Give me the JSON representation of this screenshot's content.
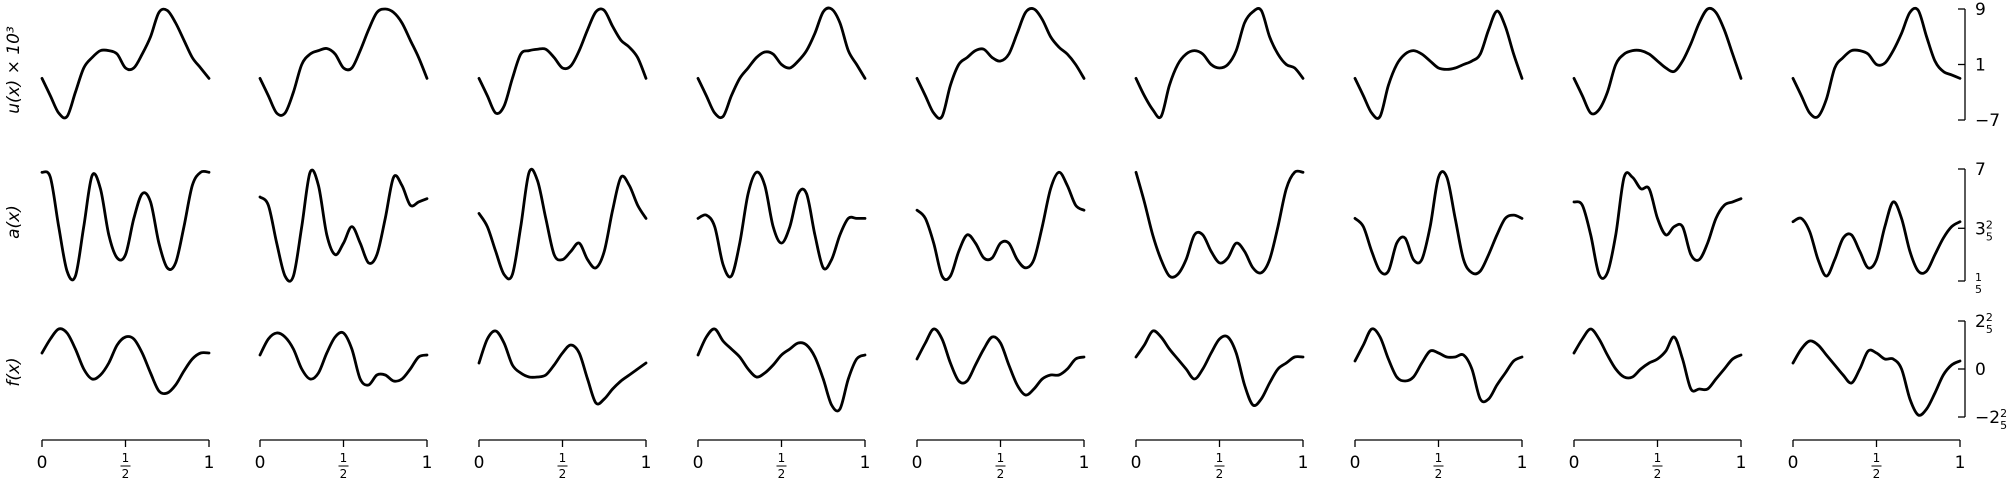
{
  "chart_data": {
    "type": "line",
    "layout": "grid",
    "grid": false,
    "legend": "none",
    "panel_count": 9,
    "xlim": [
      0,
      1
    ],
    "x_ticks": [
      {
        "value": 0,
        "label": "0"
      },
      {
        "value": 0.5,
        "label": "1/2"
      },
      {
        "value": 1,
        "label": "1"
      }
    ],
    "x_sample": [
      0,
      0.05,
      0.1,
      0.15,
      0.2,
      0.25,
      0.3,
      0.35,
      0.4,
      0.45,
      0.5,
      0.55,
      0.6,
      0.65,
      0.7,
      0.75,
      0.8,
      0.85,
      0.9,
      0.95,
      1
    ],
    "rows": [
      {
        "key": "u",
        "ylabel": "u(x) × 10³",
        "ylim": [
          -7,
          9
        ],
        "y_ticks": [
          {
            "value": 9,
            "label": "9"
          },
          {
            "value": 1,
            "label": "1"
          },
          {
            "value": -7,
            "label": "−7"
          }
        ],
        "series": [
          [
            -1,
            -3.5,
            -6,
            -6.5,
            -3,
            0.5,
            2,
            3,
            3,
            2.5,
            0.5,
            0.5,
            2.5,
            5,
            8.5,
            8.8,
            7,
            4.5,
            2,
            0.5,
            -1
          ],
          [
            -1,
            -3.5,
            -6,
            -6,
            -3,
            1,
            2.5,
            3,
            3.3,
            2.5,
            0.5,
            0.5,
            3,
            6,
            8.5,
            9,
            8.5,
            7,
            4.5,
            2,
            -1
          ],
          [
            -1,
            -3.5,
            -6,
            -5,
            -1,
            2.5,
            3,
            3.2,
            3.2,
            2,
            0.5,
            0.8,
            3,
            6,
            8.6,
            8.8,
            6.5,
            4.5,
            3.5,
            2,
            -1
          ],
          [
            -1,
            -3.5,
            -6,
            -6.5,
            -3.5,
            -1,
            0.5,
            2,
            2.8,
            2.5,
            1,
            0.5,
            1.5,
            3,
            5.5,
            8.6,
            9,
            7,
            3,
            1,
            -1
          ],
          [
            -1,
            -3.5,
            -6,
            -6.5,
            -2,
            1,
            2,
            3,
            3.2,
            2,
            1.5,
            2.5,
            5.5,
            8.5,
            9,
            7.5,
            5,
            3.5,
            2.5,
            1,
            -1
          ],
          [
            -1,
            -3.5,
            -5.5,
            -6.5,
            -2,
            1,
            2.5,
            3,
            2.5,
            1,
            0.5,
            1,
            3,
            7,
            8.6,
            8.8,
            5,
            2.5,
            1,
            0.5,
            -1
          ],
          [
            -1,
            -3.5,
            -6,
            -6.5,
            -2,
            1,
            2.5,
            3,
            2.5,
            1.5,
            0.5,
            0.3,
            0.5,
            1,
            1.5,
            2.5,
            6,
            8.7,
            6.5,
            2.5,
            -1
          ],
          [
            -1,
            -3.5,
            -6,
            -5.5,
            -3,
            1,
            2.5,
            3,
            3,
            2.5,
            1.5,
            0.5,
            0,
            1.5,
            4,
            7,
            9,
            8.5,
            6,
            2.5,
            -1
          ],
          [
            -1,
            -3.5,
            -6,
            -6.5,
            -4,
            0.5,
            2,
            3,
            3,
            2.5,
            1,
            1.2,
            3,
            5.5,
            8.5,
            8.8,
            5,
            1.5,
            0,
            -0.5,
            -1
          ]
        ]
      },
      {
        "key": "a",
        "ylabel": "a(x)",
        "ylim": [
          0.2,
          7
        ],
        "y_ticks": [
          {
            "value": 7,
            "label": "7"
          },
          {
            "value": 3.4,
            "label": "3 2/5"
          },
          {
            "value": 0.2,
            "label": "1/5"
          }
        ],
        "series": [
          [
            6.8,
            6.5,
            3.5,
            0.8,
            0.5,
            3.5,
            6.6,
            5.8,
            3,
            1.6,
            1.8,
            4,
            5.5,
            5,
            2.5,
            1,
            1.3,
            3.5,
            6,
            6.8,
            6.8
          ],
          [
            5.3,
            4.8,
            2.5,
            0.5,
            0.5,
            3.5,
            6.8,
            6,
            3,
            1.8,
            2.5,
            3.5,
            2.5,
            1.3,
            1.8,
            4,
            6.5,
            6,
            4.8,
            5,
            5.2
          ],
          [
            4.3,
            3.5,
            2,
            0.6,
            0.6,
            3.5,
            6.8,
            6.3,
            4,
            1.8,
            1.5,
            2,
            2.5,
            1.5,
            1,
            2,
            4.5,
            6.5,
            6,
            4.8,
            4
          ],
          [
            4,
            4.2,
            3.5,
            1.2,
            0.5,
            2.5,
            5.5,
            6.8,
            6,
            3.5,
            2.5,
            3.5,
            5.5,
            5.5,
            3,
            1,
            1.5,
            3,
            4,
            4,
            4
          ],
          [
            4.5,
            4,
            2.5,
            0.5,
            0.5,
            2,
            3,
            2.5,
            1.6,
            1.6,
            2.5,
            2.5,
            1.5,
            1,
            1.5,
            3.5,
            5.8,
            6.8,
            6,
            4.8,
            4.5
          ],
          [
            6.8,
            5,
            3,
            1.5,
            0.5,
            0.6,
            1.5,
            3,
            3,
            2,
            1.3,
            1.6,
            2.5,
            2,
            1,
            0.7,
            1.5,
            3.5,
            5.8,
            6.8,
            6.8
          ],
          [
            4,
            3.5,
            2,
            0.8,
            0.8,
            2.5,
            2.8,
            1.5,
            1.5,
            3.5,
            6.5,
            6.5,
            4,
            1.5,
            0.7,
            0.8,
            1.8,
            3,
            4,
            4.2,
            4
          ],
          [
            5,
            4.8,
            3,
            0.6,
            0.7,
            3,
            6.5,
            6.5,
            5.8,
            5.8,
            4,
            3,
            3.5,
            3.5,
            1.8,
            1.5,
            2.5,
            4,
            4.8,
            5,
            5.2
          ],
          [
            3.8,
            4,
            3.2,
            1.5,
            0.5,
            1.5,
            2.8,
            3,
            2,
            1,
            1.5,
            3.5,
            5,
            4,
            2,
            0.8,
            0.8,
            1.8,
            2.8,
            3.5,
            3.8
          ]
        ]
      },
      {
        "key": "f",
        "ylabel": "f(x)",
        "ylim": [
          -2.4,
          2.4
        ],
        "y_ticks": [
          {
            "value": 2.4,
            "label": "2 2/5"
          },
          {
            "value": 0,
            "label": "0"
          },
          {
            "value": -2.4,
            "label": "−2 2/5"
          }
        ],
        "series": [
          [
            0.8,
            1.5,
            2,
            1.8,
            1,
            0,
            -0.5,
            -0.3,
            0.3,
            1.2,
            1.6,
            1.5,
            0.8,
            -0.2,
            -1.1,
            -1.2,
            -0.8,
            -0.1,
            0.5,
            0.8,
            0.8
          ],
          [
            0.7,
            1.5,
            1.8,
            1.6,
            1,
            0,
            -0.5,
            -0.2,
            0.8,
            1.6,
            1.8,
            1,
            -0.5,
            -0.8,
            -0.3,
            -0.3,
            -0.6,
            -0.5,
            0,
            0.6,
            0.7
          ],
          [
            0.3,
            1.5,
            1.9,
            1.3,
            0.2,
            -0.2,
            -0.4,
            -0.4,
            -0.3,
            0.2,
            0.8,
            1.2,
            0.8,
            -0.5,
            -1.7,
            -1.5,
            -1,
            -0.6,
            -0.3,
            0,
            0.3
          ],
          [
            0.7,
            1.6,
            2,
            1.4,
            1,
            0.6,
            0,
            -0.4,
            -0.2,
            0.2,
            0.7,
            1,
            1.3,
            1.2,
            0.6,
            -0.5,
            -1.8,
            -2,
            -0.5,
            0.5,
            0.7
          ],
          [
            0.5,
            1.3,
            2,
            1.5,
            0.3,
            -0.6,
            -0.6,
            0.2,
            1,
            1.6,
            1.3,
            0.2,
            -0.8,
            -1.3,
            -1,
            -0.5,
            -0.3,
            -0.3,
            0,
            0.5,
            0.6
          ],
          [
            0.6,
            1.2,
            1.9,
            1.6,
            1,
            0.5,
            0,
            -0.5,
            0,
            0.8,
            1.5,
            1.6,
            0.8,
            -0.8,
            -1.8,
            -1.5,
            -0.7,
            0,
            0.3,
            0.6,
            0.6
          ],
          [
            0.4,
            1.2,
            2,
            1.6,
            0.5,
            -0.4,
            -0.6,
            -0.4,
            0.3,
            0.9,
            0.8,
            0.6,
            0.6,
            0.7,
            0,
            -1.5,
            -1.5,
            -0.8,
            -0.2,
            0.4,
            0.6
          ],
          [
            0.8,
            1.5,
            2,
            1.5,
            0.7,
            0,
            -0.4,
            -0.4,
            0,
            0.3,
            0.5,
            0.9,
            1.6,
            0.5,
            -1,
            -1,
            -1,
            -0.5,
            0,
            0.5,
            0.7
          ],
          [
            0.3,
            1,
            1.4,
            1.2,
            0.7,
            0.2,
            -0.3,
            -0.7,
            0,
            0.9,
            0.8,
            0.5,
            0.5,
            0,
            -1.5,
            -2.3,
            -2,
            -1.2,
            -0.3,
            0.2,
            0.4
          ]
        ]
      }
    ]
  }
}
